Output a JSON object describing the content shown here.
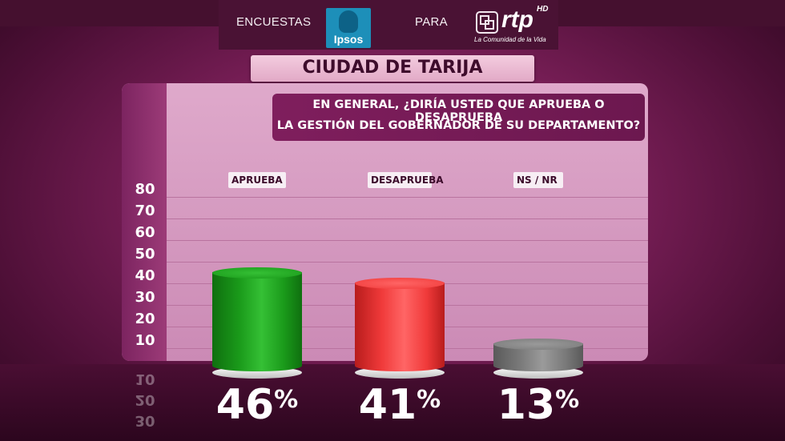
{
  "header": {
    "left_text": "ENCUESTAS",
    "ipsos_logo_text": "Ipsos",
    "middle_text": "PARA",
    "rtp_logo_text": "rtp",
    "rtp_hd": "HD",
    "rtp_tagline": "La Comunidad de la Vida"
  },
  "city_title": "CIUDAD DE TARIJA",
  "question": {
    "line1": "EN GENERAL, ¿DIRÍA USTED QUE APRUEBA O DESAPRUEBA",
    "line2": "LA GESTIÓN DEL GOBERNADOR DE SU DEPARTAMENTO?"
  },
  "chart_data": {
    "type": "bar",
    "categories": [
      "APRUEBA",
      "DESAPRUEBA",
      "NS / NR"
    ],
    "values": [
      46,
      41,
      13
    ],
    "value_labels": [
      "46",
      "41",
      "13"
    ],
    "percent_symbol": "%",
    "y_ticks": [
      "80",
      "70",
      "60",
      "50",
      "40",
      "30",
      "20",
      "10"
    ],
    "reflected_ticks": [
      "10",
      "20",
      "30"
    ],
    "ylim": [
      0,
      80
    ],
    "colors": [
      "#1a9a1a",
      "#f03a3a",
      "#7a7a7a"
    ],
    "grid": true
  }
}
